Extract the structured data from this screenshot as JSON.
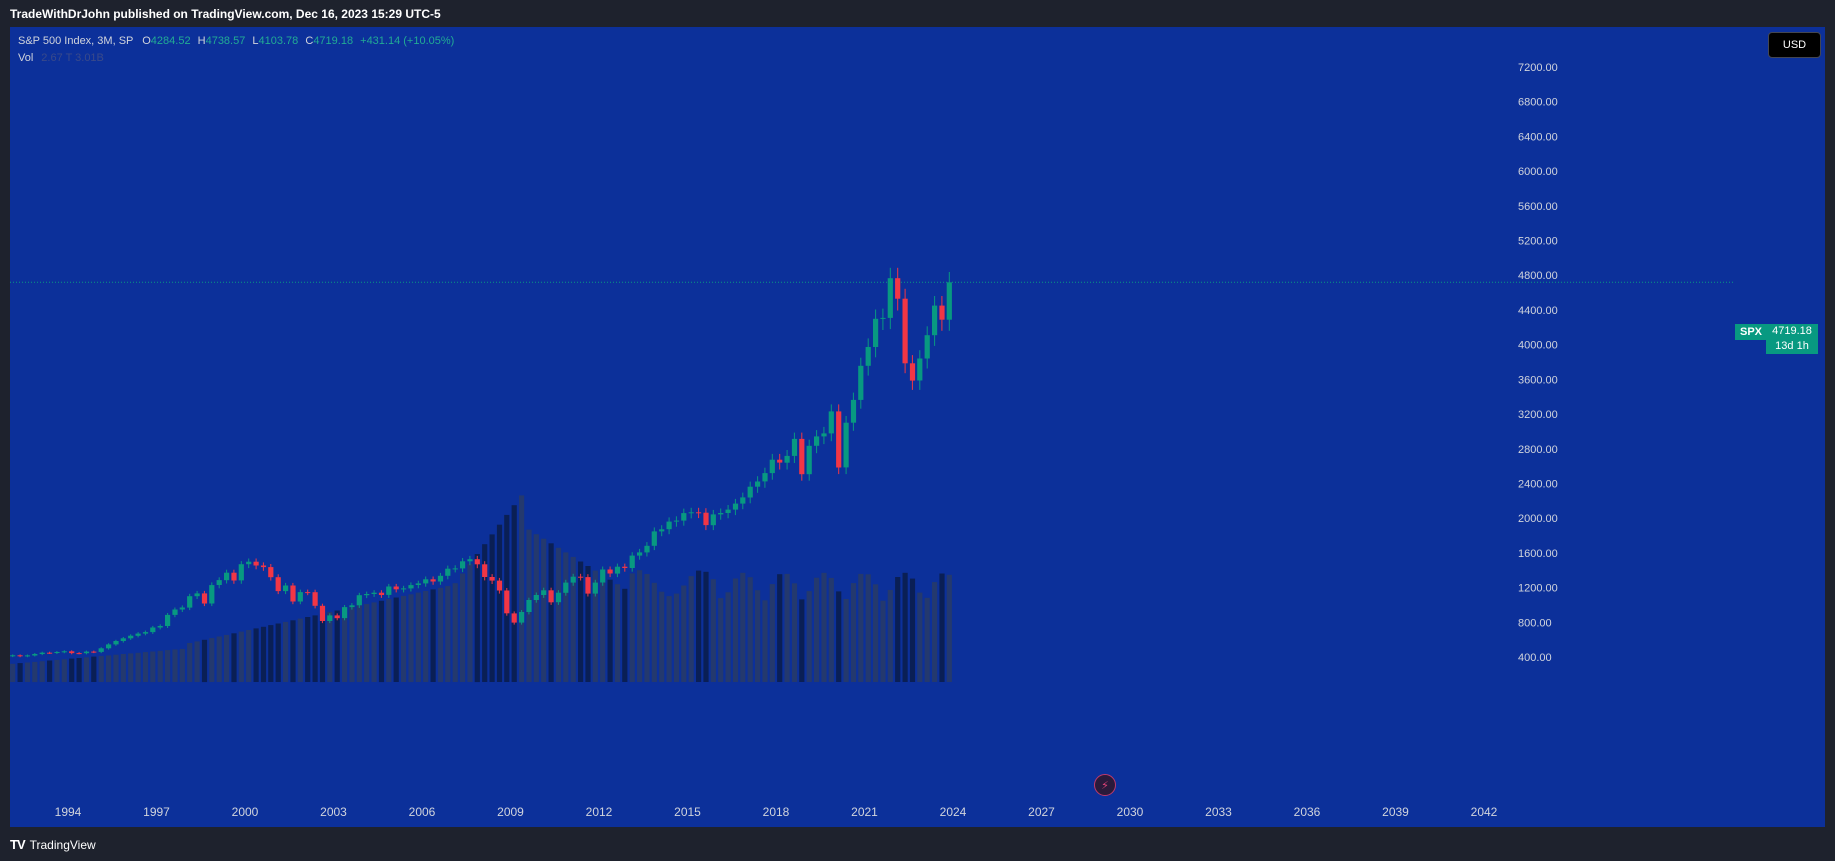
{
  "header": {
    "publish_text": "TradeWithDrJohn published on TradingView.com, Dec 16, 2023 15:29 UTC-5"
  },
  "legend": {
    "symbol": "S&P 500 Index, 3M, SP",
    "open_label": "O",
    "open": "4284.52",
    "high_label": "H",
    "high": "4738.57",
    "low_label": "L",
    "low": "4103.78",
    "close_label": "C",
    "close": "4719.18",
    "change": "+431.14 (+10.05%)",
    "vol_label": "Vol",
    "vol_value": "2.67 T 3.01B"
  },
  "currency_button": "USD",
  "price_tag": {
    "symbol": "SPX",
    "price": "4719.18",
    "countdown": "13d 1h"
  },
  "footer": {
    "logo_mark": "TV",
    "logo_text": "TradingView"
  },
  "icons": {
    "bolt": "lightning-bolt-icon"
  },
  "colors": {
    "background": "#0c309a",
    "up": "#089981",
    "down": "#f23645",
    "volume_dark": "#0a1f55",
    "volume_light": "#24396e"
  },
  "chart_data": {
    "type": "candlestick",
    "title": "S&P 500 Index, 3M, SP",
    "interval": "3M",
    "y_axis_position": "right",
    "y_ticks": [
      400,
      800,
      1200,
      1600,
      2000,
      2400,
      2800,
      3200,
      3600,
      4000,
      4400,
      4800,
      5200,
      5600,
      6000,
      6400,
      6800,
      7200
    ],
    "y_tick_labels": [
      "400.00",
      "800.00",
      "1200.00",
      "1600.00",
      "2000.00",
      "2400.00",
      "2800.00",
      "3200.00",
      "3600.00",
      "4000.00",
      "4400.00",
      "4800.00",
      "5200.00",
      "5600.00",
      "6000.00",
      "6400.00",
      "6800.00",
      "7200.00"
    ],
    "x_ticks": [
      1994,
      1997,
      2000,
      2003,
      2006,
      2009,
      2012,
      2015,
      2018,
      2021,
      2024,
      2027,
      2030,
      2033,
      2036,
      2039,
      2042
    ],
    "x_tick_labels": [
      "1994",
      "1997",
      "2000",
      "2003",
      "2006",
      "2009",
      "2012",
      "2015",
      "2018",
      "2021",
      "2024",
      "2027",
      "2030",
      "2033",
      "2036",
      "2039",
      "2042"
    ],
    "x_range": [
      1992,
      2043.2
    ],
    "y_range": [
      140,
      7540
    ],
    "last_price": 4719.18,
    "closes": [
      {
        "t": 1992.0,
        "c": 420
      },
      {
        "t": 1992.25,
        "c": 410
      },
      {
        "t": 1992.5,
        "c": 418
      },
      {
        "t": 1992.75,
        "c": 435
      },
      {
        "t": 1993.0,
        "c": 450
      },
      {
        "t": 1993.25,
        "c": 448
      },
      {
        "t": 1993.5,
        "c": 458
      },
      {
        "t": 1993.75,
        "c": 466
      },
      {
        "t": 1994.0,
        "c": 445
      },
      {
        "t": 1994.25,
        "c": 444
      },
      {
        "t": 1994.5,
        "c": 462
      },
      {
        "t": 1994.75,
        "c": 459
      },
      {
        "t": 1995.0,
        "c": 500
      },
      {
        "t": 1995.25,
        "c": 545
      },
      {
        "t": 1995.5,
        "c": 584
      },
      {
        "t": 1995.75,
        "c": 615
      },
      {
        "t": 1996.0,
        "c": 645
      },
      {
        "t": 1996.25,
        "c": 670
      },
      {
        "t": 1996.5,
        "c": 687
      },
      {
        "t": 1996.75,
        "c": 740
      },
      {
        "t": 1997.0,
        "c": 757
      },
      {
        "t": 1997.25,
        "c": 885
      },
      {
        "t": 1997.5,
        "c": 947
      },
      {
        "t": 1997.75,
        "c": 970
      },
      {
        "t": 1998.0,
        "c": 1101
      },
      {
        "t": 1998.25,
        "c": 1133
      },
      {
        "t": 1998.5,
        "c": 1017
      },
      {
        "t": 1998.75,
        "c": 1229
      },
      {
        "t": 1999.0,
        "c": 1286
      },
      {
        "t": 1999.25,
        "c": 1372
      },
      {
        "t": 1999.5,
        "c": 1282
      },
      {
        "t": 1999.75,
        "c": 1469
      },
      {
        "t": 2000.0,
        "c": 1498
      },
      {
        "t": 2000.25,
        "c": 1454
      },
      {
        "t": 2000.5,
        "c": 1436
      },
      {
        "t": 2000.75,
        "c": 1320
      },
      {
        "t": 2001.0,
        "c": 1160
      },
      {
        "t": 2001.25,
        "c": 1224
      },
      {
        "t": 2001.5,
        "c": 1040
      },
      {
        "t": 2001.75,
        "c": 1148
      },
      {
        "t": 2002.0,
        "c": 1147
      },
      {
        "t": 2002.25,
        "c": 990
      },
      {
        "t": 2002.5,
        "c": 815
      },
      {
        "t": 2002.75,
        "c": 880
      },
      {
        "t": 2003.0,
        "c": 848
      },
      {
        "t": 2003.25,
        "c": 975
      },
      {
        "t": 2003.5,
        "c": 996
      },
      {
        "t": 2003.75,
        "c": 1112
      },
      {
        "t": 2004.0,
        "c": 1126
      },
      {
        "t": 2004.25,
        "c": 1141
      },
      {
        "t": 2004.5,
        "c": 1115
      },
      {
        "t": 2004.75,
        "c": 1212
      },
      {
        "t": 2005.0,
        "c": 1180
      },
      {
        "t": 2005.25,
        "c": 1191
      },
      {
        "t": 2005.5,
        "c": 1229
      },
      {
        "t": 2005.75,
        "c": 1248
      },
      {
        "t": 2006.0,
        "c": 1295
      },
      {
        "t": 2006.25,
        "c": 1270
      },
      {
        "t": 2006.5,
        "c": 1336
      },
      {
        "t": 2006.75,
        "c": 1418
      },
      {
        "t": 2007.0,
        "c": 1421
      },
      {
        "t": 2007.25,
        "c": 1503
      },
      {
        "t": 2007.5,
        "c": 1527
      },
      {
        "t": 2007.75,
        "c": 1468
      },
      {
        "t": 2008.0,
        "c": 1322
      },
      {
        "t": 2008.25,
        "c": 1280
      },
      {
        "t": 2008.5,
        "c": 1166
      },
      {
        "t": 2008.75,
        "c": 903
      },
      {
        "t": 2009.0,
        "c": 797
      },
      {
        "t": 2009.25,
        "c": 919
      },
      {
        "t": 2009.5,
        "c": 1057
      },
      {
        "t": 2009.75,
        "c": 1115
      },
      {
        "t": 2010.0,
        "c": 1169
      },
      {
        "t": 2010.25,
        "c": 1031
      },
      {
        "t": 2010.5,
        "c": 1141
      },
      {
        "t": 2010.75,
        "c": 1258
      },
      {
        "t": 2011.0,
        "c": 1326
      },
      {
        "t": 2011.25,
        "c": 1321
      },
      {
        "t": 2011.5,
        "c": 1131
      },
      {
        "t": 2011.75,
        "c": 1258
      },
      {
        "t": 2012.0,
        "c": 1408
      },
      {
        "t": 2012.25,
        "c": 1362
      },
      {
        "t": 2012.5,
        "c": 1441
      },
      {
        "t": 2012.75,
        "c": 1426
      },
      {
        "t": 2013.0,
        "c": 1569
      },
      {
        "t": 2013.25,
        "c": 1606
      },
      {
        "t": 2013.5,
        "c": 1682
      },
      {
        "t": 2013.75,
        "c": 1848
      },
      {
        "t": 2014.0,
        "c": 1872
      },
      {
        "t": 2014.25,
        "c": 1960
      },
      {
        "t": 2014.5,
        "c": 1972
      },
      {
        "t": 2014.75,
        "c": 2059
      },
      {
        "t": 2015.0,
        "c": 2068
      },
      {
        "t": 2015.25,
        "c": 2063
      },
      {
        "t": 2015.5,
        "c": 1920
      },
      {
        "t": 2015.75,
        "c": 2044
      },
      {
        "t": 2016.0,
        "c": 2060
      },
      {
        "t": 2016.25,
        "c": 2099
      },
      {
        "t": 2016.5,
        "c": 2168
      },
      {
        "t": 2016.75,
        "c": 2239
      },
      {
        "t": 2017.0,
        "c": 2363
      },
      {
        "t": 2017.25,
        "c": 2423
      },
      {
        "t": 2017.5,
        "c": 2519
      },
      {
        "t": 2017.75,
        "c": 2674
      },
      {
        "t": 2018.0,
        "c": 2640
      },
      {
        "t": 2018.25,
        "c": 2718
      },
      {
        "t": 2018.5,
        "c": 2914
      },
      {
        "t": 2018.75,
        "c": 2507
      },
      {
        "t": 2019.0,
        "c": 2834
      },
      {
        "t": 2019.25,
        "c": 2942
      },
      {
        "t": 2019.5,
        "c": 2977
      },
      {
        "t": 2019.75,
        "c": 3231
      },
      {
        "t": 2020.0,
        "c": 2585
      },
      {
        "t": 2020.25,
        "c": 3100
      },
      {
        "t": 2020.5,
        "c": 3363
      },
      {
        "t": 2020.75,
        "c": 3756
      },
      {
        "t": 2021.0,
        "c": 3973
      },
      {
        "t": 2021.25,
        "c": 4298
      },
      {
        "t": 2021.5,
        "c": 4308
      },
      {
        "t": 2021.75,
        "c": 4766
      },
      {
        "t": 2022.0,
        "c": 4530
      },
      {
        "t": 2022.25,
        "c": 3785
      },
      {
        "t": 2022.5,
        "c": 3586
      },
      {
        "t": 2022.75,
        "c": 3840
      },
      {
        "t": 2023.0,
        "c": 4109
      },
      {
        "t": 2023.25,
        "c": 4450
      },
      {
        "t": 2023.5,
        "c": 4288
      },
      {
        "t": 2023.75,
        "c": 4719
      }
    ],
    "volume_scale": "relative",
    "volume_series_name": "Vol"
  }
}
